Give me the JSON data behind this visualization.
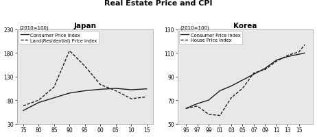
{
  "title": "Real Estate Price and CPI",
  "japan_title": "Japan",
  "korea_title": "Korea",
  "subtitle": "(2010=100)",
  "japan_x": [
    75,
    80,
    85,
    90,
    95,
    100,
    105,
    110,
    115
  ],
  "japan_x_labels": [
    "75",
    "80",
    "85",
    "90",
    "95",
    "00",
    "05",
    "10",
    "15"
  ],
  "japan_cpi": [
    58,
    75,
    85,
    95,
    100,
    103,
    105,
    102,
    104
  ],
  "japan_land": [
    68,
    80,
    108,
    185,
    152,
    113,
    100,
    83,
    87
  ],
  "japan_ylim": [
    30,
    230
  ],
  "japan_yticks": [
    30,
    80,
    130,
    180,
    230
  ],
  "korea_x": [
    95,
    97,
    99,
    101,
    103,
    105,
    107,
    109,
    111,
    113,
    115,
    116
  ],
  "korea_x_labels": [
    "95",
    "97",
    "99",
    "01",
    "03",
    "05",
    "07",
    "09",
    "11",
    "13",
    "15",
    ""
  ],
  "korea_cpi": [
    63,
    67,
    70,
    78,
    82,
    87,
    92,
    97,
    104,
    107,
    109,
    110
  ],
  "korea_house": [
    63,
    65,
    58,
    57,
    72,
    80,
    93,
    96,
    103,
    108,
    111,
    117
  ],
  "korea_ylim": [
    50,
    130
  ],
  "korea_yticks": [
    50,
    70,
    90,
    110,
    130
  ],
  "legend_cpi": "Consumer Price Index",
  "legend_japan_land": "Land(Residential) Price Index",
  "legend_korea_house": "House Price Index",
  "line_color": "#1a1a1a",
  "panel_bg": "#e8e8e8",
  "title_fontsize": 8,
  "subtitle_fontsize": 5,
  "tick_fontsize": 5.5,
  "legend_fontsize": 4.8,
  "panel_title_fontsize": 7.5,
  "suptitle_fontsize": 8
}
